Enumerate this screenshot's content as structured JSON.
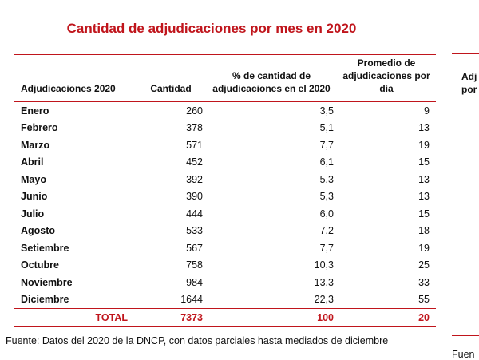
{
  "colors": {
    "accent": "#c0151c",
    "text": "#111111",
    "rule": "#c0151c"
  },
  "title": "Cantidad de adjudicaciones por mes en 2020",
  "table": {
    "headers": [
      "Adjudicaciones 2020",
      "Cantidad",
      "% de cantidad de adjudicaciones en el 2020",
      "Promedio de adjudicaciones por día"
    ],
    "rows": [
      {
        "month": "Enero",
        "count": "260",
        "pct": "3,5",
        "avg": "9"
      },
      {
        "month": "Febrero",
        "count": "378",
        "pct": "5,1",
        "avg": "13"
      },
      {
        "month": "Marzo",
        "count": "571",
        "pct": "7,7",
        "avg": "19"
      },
      {
        "month": "Abril",
        "count": "452",
        "pct": "6,1",
        "avg": "15"
      },
      {
        "month": "Mayo",
        "count": "392",
        "pct": "5,3",
        "avg": "13"
      },
      {
        "month": "Junio",
        "count": "390",
        "pct": "5,3",
        "avg": "13"
      },
      {
        "month": "Julio",
        "count": "444",
        "pct": "6,0",
        "avg": "15"
      },
      {
        "month": "Agosto",
        "count": "533",
        "pct": "7,2",
        "avg": "18"
      },
      {
        "month": "Setiembre",
        "count": "567",
        "pct": "7,7",
        "avg": "19"
      },
      {
        "month": "Octubre",
        "count": "758",
        "pct": "10,3",
        "avg": "25"
      },
      {
        "month": "Noviembre",
        "count": "984",
        "pct": "13,3",
        "avg": "33"
      },
      {
        "month": "Diciembre",
        "count": "1644",
        "pct": "22,3",
        "avg": "55"
      }
    ],
    "total": {
      "label": "TOTAL",
      "count": "7373",
      "pct": "100",
      "avg": "20"
    }
  },
  "source": "Fuente: Datos del 2020 de la DNCP, con datos parciales hasta mediados de diciembre",
  "side_panel": {
    "header_fragment": "Adj\npor",
    "source_fragment": "Fuen"
  }
}
